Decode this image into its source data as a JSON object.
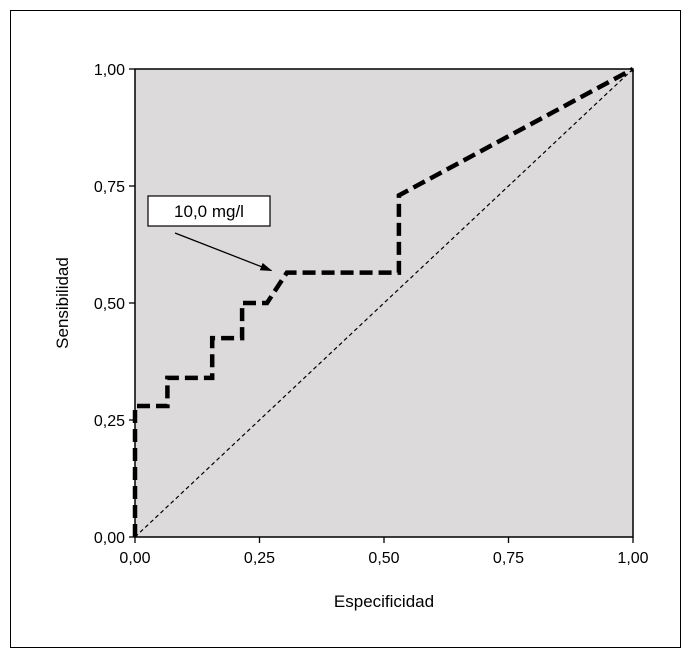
{
  "chart_data": {
    "type": "line",
    "xlabel": "Especificidad",
    "ylabel": "Sensibilidad",
    "xlim": [
      0,
      1
    ],
    "ylim": [
      0,
      1
    ],
    "xticks": [
      "0,00",
      "0,25",
      "0,50",
      "0,75",
      "1,00"
    ],
    "yticks": [
      "0,00",
      "0,25",
      "0,50",
      "0,75",
      "1,00"
    ],
    "tick_values": [
      0,
      0.25,
      0.5,
      0.75,
      1
    ],
    "grid": false,
    "plot_background": "#dcdadb",
    "series": [
      {
        "style": "thick-dashed",
        "color": "#000000",
        "x": [
          0.0,
          0.0,
          0.0,
          0.005,
          0.065,
          0.065,
          0.155,
          0.155,
          0.215,
          0.215,
          0.265,
          0.305,
          0.53,
          0.53,
          1.0
        ],
        "y": [
          0.0,
          0.28,
          0.28,
          0.28,
          0.28,
          0.34,
          0.34,
          0.425,
          0.425,
          0.5,
          0.5,
          0.565,
          0.565,
          0.73,
          1.0
        ]
      },
      {
        "style": "thin-dashed-reference",
        "color": "#000000",
        "x": [
          0,
          1
        ],
        "y": [
          0,
          1
        ]
      }
    ],
    "annotations": [
      {
        "text": "10,0 mg/l",
        "target_x": 0.29,
        "target_y": 0.565
      }
    ]
  }
}
